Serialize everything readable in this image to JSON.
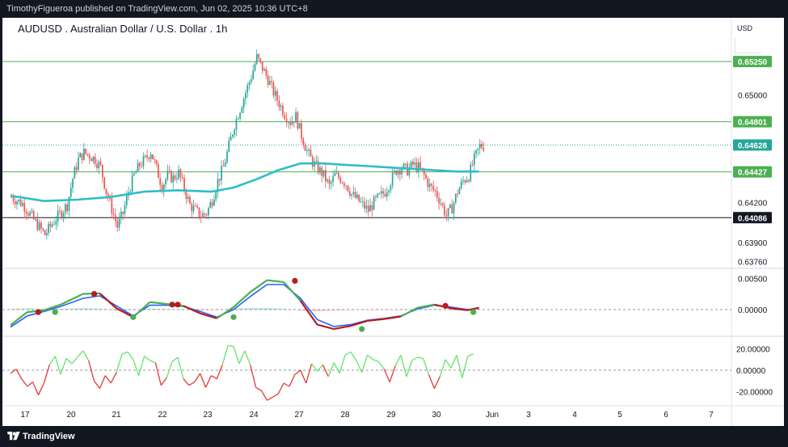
{
  "publisher_line": "TimothyFigueroa published on TradingView.com, Jun 02, 2025 10:36 UTC+8",
  "title": "AUDUSD . Australian Dollar / U.S. Dollar . 1h",
  "currency": "USD",
  "brand": "TradingView",
  "colors": {
    "up": "#26a69a",
    "down": "#ef5350",
    "ma": "#2ebdc6",
    "level_line": "#4caf50",
    "close_line": "#131722",
    "osc_green": "#4caf50",
    "osc_red": "#b71c1c",
    "osc_blue": "#2962ff",
    "rsi_green": "#66e36a",
    "rsi_red": "#e53935"
  },
  "chart_data": [
    {
      "type": "candlestick",
      "x_labels": [
        "17",
        "20",
        "21",
        "22",
        "23",
        "24",
        "27",
        "28",
        "29",
        "30",
        "Jun",
        "3",
        "4",
        "5",
        "6",
        "7"
      ],
      "y_ticks": [
        0.6376,
        0.639,
        0.642,
        0.65
      ],
      "y_tick_labels": [
        "0.63760",
        "0.63900",
        "0.64200",
        "0.65000"
      ],
      "ylim": [
        0.6372,
        0.6554
      ],
      "price_levels": [
        {
          "label": "0.65250",
          "value": 0.6525,
          "style": "green"
        },
        {
          "label": "0.64801",
          "value": 0.64801,
          "style": "green"
        },
        {
          "label": "0.64628",
          "value": 0.64628,
          "style": "current"
        },
        {
          "label": "0.64427",
          "value": 0.64427,
          "style": "green"
        },
        {
          "label": "0.64086",
          "value": 0.64086,
          "style": "black"
        }
      ],
      "close_path": [
        [
          0,
          0.6424
        ],
        [
          2,
          0.6419
        ],
        [
          4,
          0.6407
        ],
        [
          6,
          0.6396
        ],
        [
          8,
          0.6408
        ],
        [
          10,
          0.6418
        ],
        [
          11,
          0.6438
        ],
        [
          12,
          0.6452
        ],
        [
          13,
          0.6457
        ],
        [
          14,
          0.6455
        ],
        [
          15,
          0.6452
        ],
        [
          16,
          0.6446
        ],
        [
          17,
          0.6428
        ],
        [
          18,
          0.6415
        ],
        [
          19,
          0.6402
        ],
        [
          20,
          0.6412
        ],
        [
          21,
          0.6428
        ],
        [
          22,
          0.644
        ],
        [
          23,
          0.6448
        ],
        [
          24,
          0.6452
        ],
        [
          25,
          0.6458
        ],
        [
          26,
          0.6445
        ],
        [
          27,
          0.6432
        ],
        [
          28,
          0.644
        ],
        [
          29,
          0.6438
        ],
        [
          30,
          0.6442
        ],
        [
          31,
          0.643
        ],
        [
          32,
          0.6418
        ],
        [
          33,
          0.6414
        ],
        [
          34,
          0.641
        ],
        [
          35,
          0.6412
        ],
        [
          36,
          0.6422
        ],
        [
          37,
          0.6436
        ],
        [
          38,
          0.6446
        ],
        [
          39,
          0.6462
        ],
        [
          40,
          0.6478
        ],
        [
          41,
          0.649
        ],
        [
          42,
          0.6502
        ],
        [
          43,
          0.6514
        ],
        [
          44,
          0.6528
        ],
        [
          45,
          0.652
        ],
        [
          46,
          0.6512
        ],
        [
          47,
          0.6502
        ],
        [
          48,
          0.6494
        ],
        [
          49,
          0.6486
        ],
        [
          50,
          0.648
        ],
        [
          51,
          0.6484
        ],
        [
          52,
          0.647
        ],
        [
          53,
          0.6458
        ],
        [
          54,
          0.645
        ],
        [
          55,
          0.6445
        ],
        [
          56,
          0.644
        ],
        [
          57,
          0.6432
        ],
        [
          58,
          0.644
        ],
        [
          59,
          0.6438
        ],
        [
          60,
          0.6434
        ],
        [
          61,
          0.6426
        ],
        [
          62,
          0.6422
        ],
        [
          63,
          0.6418
        ],
        [
          64,
          0.6414
        ],
        [
          65,
          0.642
        ],
        [
          66,
          0.6424
        ],
        [
          67,
          0.6428
        ],
        [
          68,
          0.6436
        ],
        [
          69,
          0.6444
        ],
        [
          70,
          0.6446
        ],
        [
          71,
          0.6444
        ],
        [
          72,
          0.6448
        ],
        [
          73,
          0.6446
        ],
        [
          74,
          0.644
        ],
        [
          75,
          0.6432
        ],
        [
          76,
          0.6428
        ],
        [
          77,
          0.642
        ],
        [
          78,
          0.641
        ],
        [
          79,
          0.6416
        ],
        [
          80,
          0.6428
        ],
        [
          81,
          0.6436
        ],
        [
          82,
          0.644
        ],
        [
          83,
          0.6452
        ],
        [
          84,
          0.6462
        ]
      ],
      "ma_path": [
        [
          0,
          0.6425
        ],
        [
          6,
          0.6421
        ],
        [
          12,
          0.6422
        ],
        [
          18,
          0.6424
        ],
        [
          24,
          0.6428
        ],
        [
          30,
          0.6429
        ],
        [
          36,
          0.6428
        ],
        [
          40,
          0.6431
        ],
        [
          44,
          0.6437
        ],
        [
          48,
          0.6444
        ],
        [
          52,
          0.6449
        ],
        [
          56,
          0.6449
        ],
        [
          60,
          0.6448
        ],
        [
          64,
          0.6447
        ],
        [
          68,
          0.6446
        ],
        [
          72,
          0.6445
        ],
        [
          76,
          0.6444
        ],
        [
          80,
          0.6443
        ],
        [
          84,
          0.6443
        ]
      ],
      "oscillator": {
        "y_ticks": [
          0.005,
          0.0
        ],
        "y_tick_labels": [
          "0.00500",
          "0.00000"
        ],
        "ylim": [
          -0.004,
          0.0062
        ],
        "line_a": [
          [
            0,
            -0.0025
          ],
          [
            3,
            -0.0004
          ],
          [
            6,
            -0.0001
          ],
          [
            9,
            0.0008
          ],
          [
            13,
            0.0025
          ],
          [
            16,
            0.0026
          ],
          [
            19,
            0.0002
          ],
          [
            22,
            -0.0012
          ],
          [
            25,
            0.0012
          ],
          [
            28,
            0.0009
          ],
          [
            31,
            0.0006
          ],
          [
            34,
            -0.0006
          ],
          [
            37,
            -0.0014
          ],
          [
            40,
            0.0004
          ],
          [
            43,
            0.0028
          ],
          [
            46,
            0.0047
          ],
          [
            49,
            0.0044
          ],
          [
            52,
            0.0014
          ],
          [
            55,
            -0.0024
          ],
          [
            58,
            -0.0031
          ],
          [
            61,
            -0.0026
          ],
          [
            64,
            -0.0018
          ],
          [
            67,
            -0.0015
          ],
          [
            70,
            -0.0011
          ],
          [
            73,
            0.0003
          ],
          [
            76,
            0.0008
          ],
          [
            79,
            0.0002
          ],
          [
            82,
            -0.0001
          ],
          [
            84,
            0.0003
          ]
        ],
        "line_b": [
          [
            0,
            -0.0028
          ],
          [
            3,
            -0.001
          ],
          [
            6,
            -0.0003
          ],
          [
            9,
            0.0005
          ],
          [
            13,
            0.0018
          ],
          [
            16,
            0.0022
          ],
          [
            19,
            0.0006
          ],
          [
            22,
            -0.001
          ],
          [
            25,
            0.0007
          ],
          [
            28,
            0.0007
          ],
          [
            31,
            0.0005
          ],
          [
            34,
            -0.0003
          ],
          [
            37,
            -0.0012
          ],
          [
            40,
            0.0
          ],
          [
            43,
            0.0021
          ],
          [
            46,
            0.004
          ],
          [
            49,
            0.004
          ],
          [
            52,
            0.0018
          ],
          [
            55,
            -0.0016
          ],
          [
            58,
            -0.0027
          ],
          [
            61,
            -0.0024
          ],
          [
            64,
            -0.0017
          ],
          [
            67,
            -0.0014
          ],
          [
            70,
            -0.001
          ],
          [
            73,
            0.0001
          ],
          [
            76,
            0.0007
          ],
          [
            79,
            0.0004
          ],
          [
            82,
            0.0
          ],
          [
            84,
            0.0002
          ]
        ],
        "cross_dots": [
          {
            "x": 5,
            "y": -0.0004,
            "c": "red"
          },
          {
            "x": 8,
            "y": -0.0004,
            "c": "green"
          },
          {
            "x": 15,
            "y": 0.0025,
            "c": "red"
          },
          {
            "x": 22,
            "y": -0.0012,
            "c": "green"
          },
          {
            "x": 29,
            "y": 0.0008,
            "c": "red"
          },
          {
            "x": 30,
            "y": 0.0008,
            "c": "red"
          },
          {
            "x": 40,
            "y": -0.0012,
            "c": "green"
          },
          {
            "x": 51,
            "y": 0.0046,
            "c": "red"
          },
          {
            "x": 63,
            "y": -0.0031,
            "c": "green"
          },
          {
            "x": 78,
            "y": 0.0006,
            "c": "red"
          },
          {
            "x": 83,
            "y": -0.0004,
            "c": "green"
          }
        ]
      },
      "rsi": {
        "y_ticks": [
          20,
          0,
          -20
        ],
        "y_tick_labels": [
          "20.00000",
          "0.00000",
          "-20.00000"
        ],
        "ylim": [
          -30,
          30
        ],
        "values": [
          -3,
          1,
          -8,
          -15,
          -11,
          -23,
          -12,
          5,
          13,
          -4,
          11,
          6,
          12,
          18,
          9,
          -10,
          -17,
          -5,
          -12,
          -2,
          15,
          17,
          10,
          -5,
          13,
          9,
          7,
          -14,
          -7,
          8,
          12,
          -8,
          -14,
          -11,
          -3,
          -16,
          -5,
          -8,
          5,
          23,
          22,
          6,
          18,
          5,
          -16,
          -19,
          -28,
          -25,
          -22,
          -12,
          -15,
          -4,
          0,
          -12,
          6,
          -1,
          5,
          -6,
          7,
          -3,
          14,
          17,
          9,
          -2,
          14,
          10,
          8,
          1,
          -11,
          4,
          14,
          -6,
          9,
          12,
          11,
          -4,
          -17,
          -6,
          10,
          2,
          14,
          -7,
          13,
          15
        ]
      }
    }
  ]
}
